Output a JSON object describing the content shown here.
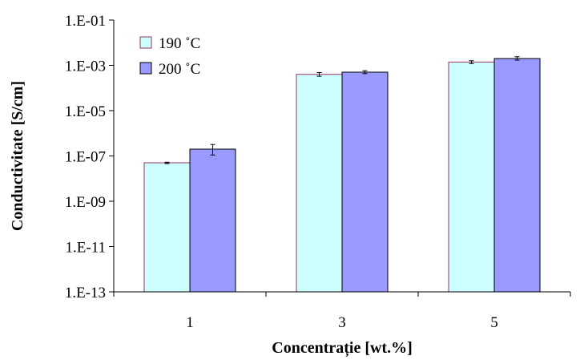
{
  "chart_data": {
    "type": "bar",
    "xlabel": "Concentrație [wt.%]",
    "ylabel": "Conductivitate [S/cm]",
    "y_scale": "log",
    "ylim": [
      1e-13,
      0.1
    ],
    "y_ticks": [
      1e-13,
      1e-11,
      1e-09,
      1e-07,
      1e-05,
      0.001,
      0.1
    ],
    "y_tick_labels": [
      "1.E-13",
      "1.E-11",
      "1.E-09",
      "1.E-07",
      "1.E-05",
      "1.E-03",
      "1.E-01"
    ],
    "categories": [
      "1",
      "3",
      "5"
    ],
    "grid": false,
    "legend_position": "top-left",
    "series": [
      {
        "name": "190 ˚C",
        "color": "#ccffff",
        "edge_color": "#993366",
        "values": [
          5e-08,
          0.0004,
          0.0014
        ],
        "error_low": [
          4.6e-08,
          0.00033,
          0.0012
        ],
        "error_high": [
          5.3e-08,
          0.00048,
          0.0016
        ]
      },
      {
        "name": "200 ˚C",
        "color": "#9999ff",
        "edge_color": "#000000",
        "values": [
          2e-07,
          0.0005,
          0.002
        ],
        "error_low": [
          1.1e-07,
          0.00043,
          0.0017
        ],
        "error_high": [
          3.2e-07,
          0.00058,
          0.0024
        ]
      }
    ]
  }
}
